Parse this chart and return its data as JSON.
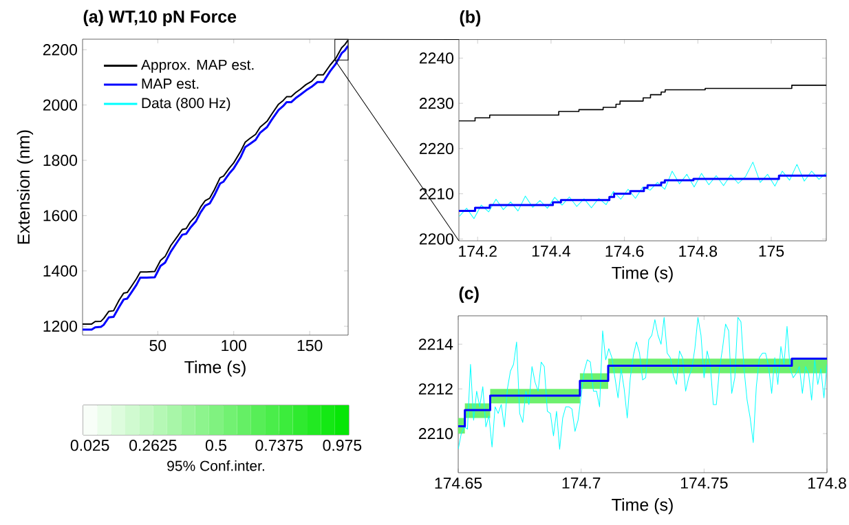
{
  "chart_data": [
    {
      "type": "line",
      "title": "**(a) WT,10 pN Force**",
      "xlabel": "Time (s)",
      "ylabel": "Extension (nm)",
      "xlim": [
        0.5,
        175.3
      ],
      "ylim": [
        1168,
        2238
      ],
      "xticks": [
        50,
        100,
        150
      ],
      "yticks": [
        1200,
        1400,
        1600,
        1800,
        2000,
        2200
      ],
      "legend": "top left",
      "series": [
        {
          "name": "Approx. MAP est.",
          "color": "#000000",
          "x": [
            0.5,
            6.5,
            8.8,
            12.6,
            14.4,
            17.8,
            20.9,
            24.6,
            27.6,
            29.9,
            33,
            36,
            38.5,
            42.7,
            48,
            51.8,
            54.8,
            58.6,
            63.1,
            66.1,
            68.7,
            71.4,
            75.2,
            78.2,
            81.2,
            84.2,
            87.2,
            91,
            93.3,
            97,
            100,
            104.6,
            107.6,
            110.6,
            114.4,
            117.4,
            121.9,
            124.9,
            129.5,
            132.5,
            134.8,
            137.8,
            140.8,
            143.8,
            147.6,
            151.3,
            155.1,
            158.9,
            163.4,
            167.2,
            171,
            173.2,
            175.15
          ],
          "values": [
            1208,
            1208,
            1217,
            1218,
            1228,
            1254,
            1256,
            1295,
            1320,
            1322,
            1347,
            1372,
            1396,
            1396,
            1398,
            1438,
            1452,
            1492,
            1526,
            1550,
            1553,
            1577,
            1600,
            1631,
            1654,
            1663,
            1693,
            1737,
            1743,
            1771,
            1791,
            1833,
            1866,
            1879,
            1894,
            1920,
            1941,
            1966,
            2003,
            2016,
            2030,
            2030,
            2045,
            2057,
            2074,
            2086,
            2109,
            2109,
            2144,
            2169,
            2207,
            2219,
            2234
          ]
        },
        {
          "name": "MAP est.",
          "color": "#0000ff",
          "x": [
            0.5,
            6.5,
            8.8,
            12.6,
            14.4,
            17.8,
            20.9,
            24.6,
            27.6,
            29.9,
            33,
            36,
            38.5,
            42.7,
            48,
            51.8,
            54.8,
            58.6,
            63.1,
            66.1,
            68.7,
            71.4,
            75.2,
            78.2,
            81.2,
            84.2,
            87.2,
            91,
            93.3,
            97,
            100,
            104.6,
            107.6,
            110.6,
            114.4,
            117.4,
            121.9,
            124.9,
            129.5,
            132.5,
            134.8,
            137.8,
            140.8,
            143.8,
            147.6,
            151.3,
            155.1,
            158.9,
            163.4,
            167.2,
            171,
            173.2,
            175.15
          ],
          "values": [
            1188,
            1188,
            1196,
            1198,
            1205,
            1232,
            1234,
            1270,
            1297,
            1300,
            1325,
            1350,
            1376,
            1376,
            1377,
            1418,
            1430,
            1470,
            1507,
            1531,
            1534,
            1556,
            1580,
            1612,
            1636,
            1644,
            1673,
            1716,
            1723,
            1752,
            1771,
            1812,
            1848,
            1859,
            1874,
            1900,
            1920,
            1946,
            1982,
            1996,
            2010,
            2010,
            2025,
            2037,
            2053,
            2066,
            2083,
            2083,
            2122,
            2149,
            2187,
            2198,
            2214
          ]
        },
        {
          "name": "Data (800 Hz)",
          "color": "#00ffff"
        }
      ]
    },
    {
      "type": "line",
      "title": "**(b)**",
      "xlabel": "Time (s)",
      "xlim": [
        174.149,
        175.15
      ],
      "ylim": [
        2199.6,
        2244.1
      ],
      "xticks": [
        174.2,
        174.4,
        174.6,
        174.8,
        175
      ],
      "yticks": [
        2200,
        2210,
        2220,
        2230,
        2240
      ],
      "series": [
        {
          "type": "step",
          "color": "#0000ff",
          "x": [
            174.149,
            174.193,
            174.233,
            174.405,
            174.427,
            174.559,
            174.572,
            174.616,
            174.653,
            174.663,
            174.7,
            174.71,
            174.788,
            175.021,
            175.15
          ],
          "values": [
            2206.2,
            2206.9,
            2207.5,
            2208.1,
            2208.6,
            2209.3,
            2210.0,
            2210.6,
            2211.3,
            2211.9,
            2212.5,
            2213.0,
            2213.3,
            2214.0,
            2214.0
          ]
        },
        {
          "type": "line",
          "color": "#00ffff",
          "x": [
            174.15,
            174.17,
            174.19,
            174.21,
            174.23,
            174.25,
            174.27,
            174.29,
            174.31,
            174.33,
            174.35,
            174.37,
            174.39,
            174.41,
            174.43,
            174.45,
            174.47,
            174.49,
            174.51,
            174.53,
            174.55,
            174.57,
            174.59,
            174.61,
            174.63,
            174.65,
            174.67,
            174.69,
            174.71,
            174.73,
            174.75,
            174.77,
            174.79,
            174.81,
            174.83,
            174.85,
            174.87,
            174.89,
            174.91,
            174.93,
            174.95,
            174.97,
            174.99,
            175.01,
            175.03,
            175.05,
            175.07,
            175.09,
            175.11,
            175.13,
            175.15
          ],
          "values": [
            2205.0,
            2206.8,
            2204.5,
            2207.5,
            2206.0,
            2208.8,
            2206.5,
            2208.2,
            2206.2,
            2209.5,
            2207.0,
            2208.5,
            2206.8,
            2209.2,
            2207.5,
            2209.3,
            2207.2,
            2208.9,
            2206.9,
            2209.0,
            2207.6,
            2210.5,
            2208.8,
            2211.0,
            2209.0,
            2211.5,
            2210.8,
            2212.5,
            2211.0,
            2215.0,
            2212.2,
            2214.3,
            2211.5,
            2214.5,
            2212.0,
            2214.0,
            2211.8,
            2214.2,
            2212.3,
            2213.8,
            2217.0,
            2212.5,
            2214.3,
            2211.7,
            2215.0,
            2213.0,
            2216.5,
            2212.8,
            2215.0,
            2213.2,
            2214.6
          ]
        },
        {
          "type": "step",
          "color": "#000000",
          "x": [
            174.149,
            174.193,
            174.233,
            174.421,
            174.476,
            174.542,
            174.577,
            174.588,
            174.651,
            174.671,
            174.7,
            174.711,
            174.82,
            175.056,
            175.15
          ],
          "values": [
            2226.1,
            2226.8,
            2227.4,
            2228.2,
            2228.6,
            2229.1,
            2229.8,
            2230.5,
            2231.2,
            2231.9,
            2232.5,
            2233.0,
            2233.3,
            2234.0,
            2234.0
          ]
        }
      ]
    },
    {
      "type": "line",
      "title": "**(c)**",
      "xlabel": "Time (s)",
      "clabel": "95% Conf.inter.",
      "clim": [
        0,
        1
      ],
      "cticks": [
        0.025,
        0.2625,
        0.5,
        0.7375,
        0.975
      ],
      "xlim": [
        174.65,
        174.8
      ],
      "ylim": [
        2208.25,
        2215.27
      ],
      "xticks": [
        174.65,
        174.7,
        174.75,
        174.8
      ],
      "yticks": [
        2210,
        2212,
        2214
      ],
      "series": [
        {
          "type": "step",
          "color": "#0000ff",
          "x": [
            174.65,
            174.6527,
            174.663,
            174.6995,
            174.711,
            174.7857,
            174.8
          ],
          "values": [
            2210.33,
            2211.05,
            2211.7,
            2212.36,
            2213.04,
            2213.35,
            2213.35
          ],
          "lower": [
            2210.0,
            2210.7,
            2211.35,
            2212.0,
            2212.7,
            2212.7,
            2212.7
          ],
          "upper": [
            2210.7,
            2211.35,
            2212.0,
            2212.7,
            2213.35,
            2213.35,
            2213.35
          ]
        },
        {
          "type": "line",
          "color": "#00ffff",
          "x": [
            174.65,
            174.65125,
            174.6525,
            174.65375,
            174.655,
            174.65625,
            174.6575,
            174.65875,
            174.66,
            174.66125,
            174.6625,
            174.66375,
            174.665,
            174.66625,
            174.6675,
            174.66875,
            174.67,
            174.67125,
            174.6725,
            174.67375,
            174.675,
            174.67625,
            174.6775,
            174.67875,
            174.68,
            174.68125,
            174.6825,
            174.68375,
            174.685,
            174.68625,
            174.6875,
            174.68875,
            174.69,
            174.69125,
            174.6925,
            174.69375,
            174.695,
            174.69625,
            174.6975,
            174.69875,
            174.7,
            174.70125,
            174.7025,
            174.70375,
            174.705,
            174.70625,
            174.7075,
            174.70875,
            174.71,
            174.71125,
            174.7125,
            174.71375,
            174.715,
            174.71625,
            174.7175,
            174.71875,
            174.72,
            174.72125,
            174.7225,
            174.72375,
            174.725,
            174.72625,
            174.7275,
            174.72875,
            174.73,
            174.73125,
            174.7325,
            174.73375,
            174.735,
            174.73625,
            174.7375,
            174.73875,
            174.74,
            174.74125,
            174.7425,
            174.74375,
            174.745,
            174.74625,
            174.7475,
            174.74875,
            174.75,
            174.75125,
            174.7525,
            174.75375,
            174.755,
            174.75625,
            174.7575,
            174.75875,
            174.76,
            174.76125,
            174.7625,
            174.76375,
            174.765,
            174.76625,
            174.7675,
            174.76875,
            174.77,
            174.77125,
            174.7725,
            174.77375,
            174.775,
            174.77625,
            174.7775,
            174.77875,
            174.78,
            174.78125,
            174.7825,
            174.78375,
            174.785,
            174.78625,
            174.7875,
            174.78875,
            174.79,
            174.79125,
            174.7925,
            174.79375,
            174.795,
            174.79625,
            174.7975,
            174.79875,
            174.8
          ],
          "values": [
            2209.3,
            2210.0,
            2210.3,
            2210.2,
            2213.1,
            2210.6,
            2211.9,
            2211.2,
            2212.1,
            2210.3,
            2210.8,
            2209.4,
            2211.2,
            2210.9,
            2211.3,
            2210.3,
            2212.0,
            2212.8,
            2213.1,
            2214.1,
            2210.9,
            2210.5,
            2211.9,
            2211.3,
            2213.0,
            2212.3,
            2211.9,
            2213.2,
            2213.0,
            2211.0,
            2210.9,
            2209.9,
            2211.0,
            2209.3,
            2210.7,
            2211.2,
            2211.2,
            2211.1,
            2210.1,
            2210.6,
            2211.7,
            2212.8,
            2213.3,
            2213.2,
            2211.9,
            2211.9,
            2211.2,
            2214.6,
            2213.3,
            2213.8,
            2213.4,
            2212.5,
            2211.6,
            2212.9,
            2212.0,
            2210.7,
            2212.5,
            2213.5,
            2214.1,
            2213.6,
            2212.4,
            2212.5,
            2214.2,
            2214.4,
            2215.1,
            2214.4,
            2214.0,
            2215.2,
            2213.6,
            2213.4,
            2212.6,
            2212.2,
            2213.7,
            2213.4,
            2211.9,
            2212.5,
            2212.9,
            2213.8,
            2215.2,
            2214.4,
            2212.5,
            2213.7,
            2213.1,
            2211.3,
            2211.3,
            2212.9,
            2213.8,
            2214.9,
            2214.6,
            2211.8,
            2212.5,
            2215.2,
            2215.0,
            2212.9,
            2211.5,
            2210.7,
            2209.6,
            2212.1,
            2213.4,
            2213.6,
            2213.6,
            2213.0,
            2211.8,
            2213.4,
            2212.2,
            2213.9,
            2213.1,
            2214.8,
            2212.9,
            2212.5,
            2212.7,
            2213.0,
            2211.8,
            2213.0,
            2212.7,
            2211.5,
            2213.3,
            2212.2,
            2212.9,
            2211.6,
            2213.1
          ]
        }
      ]
    }
  ]
}
